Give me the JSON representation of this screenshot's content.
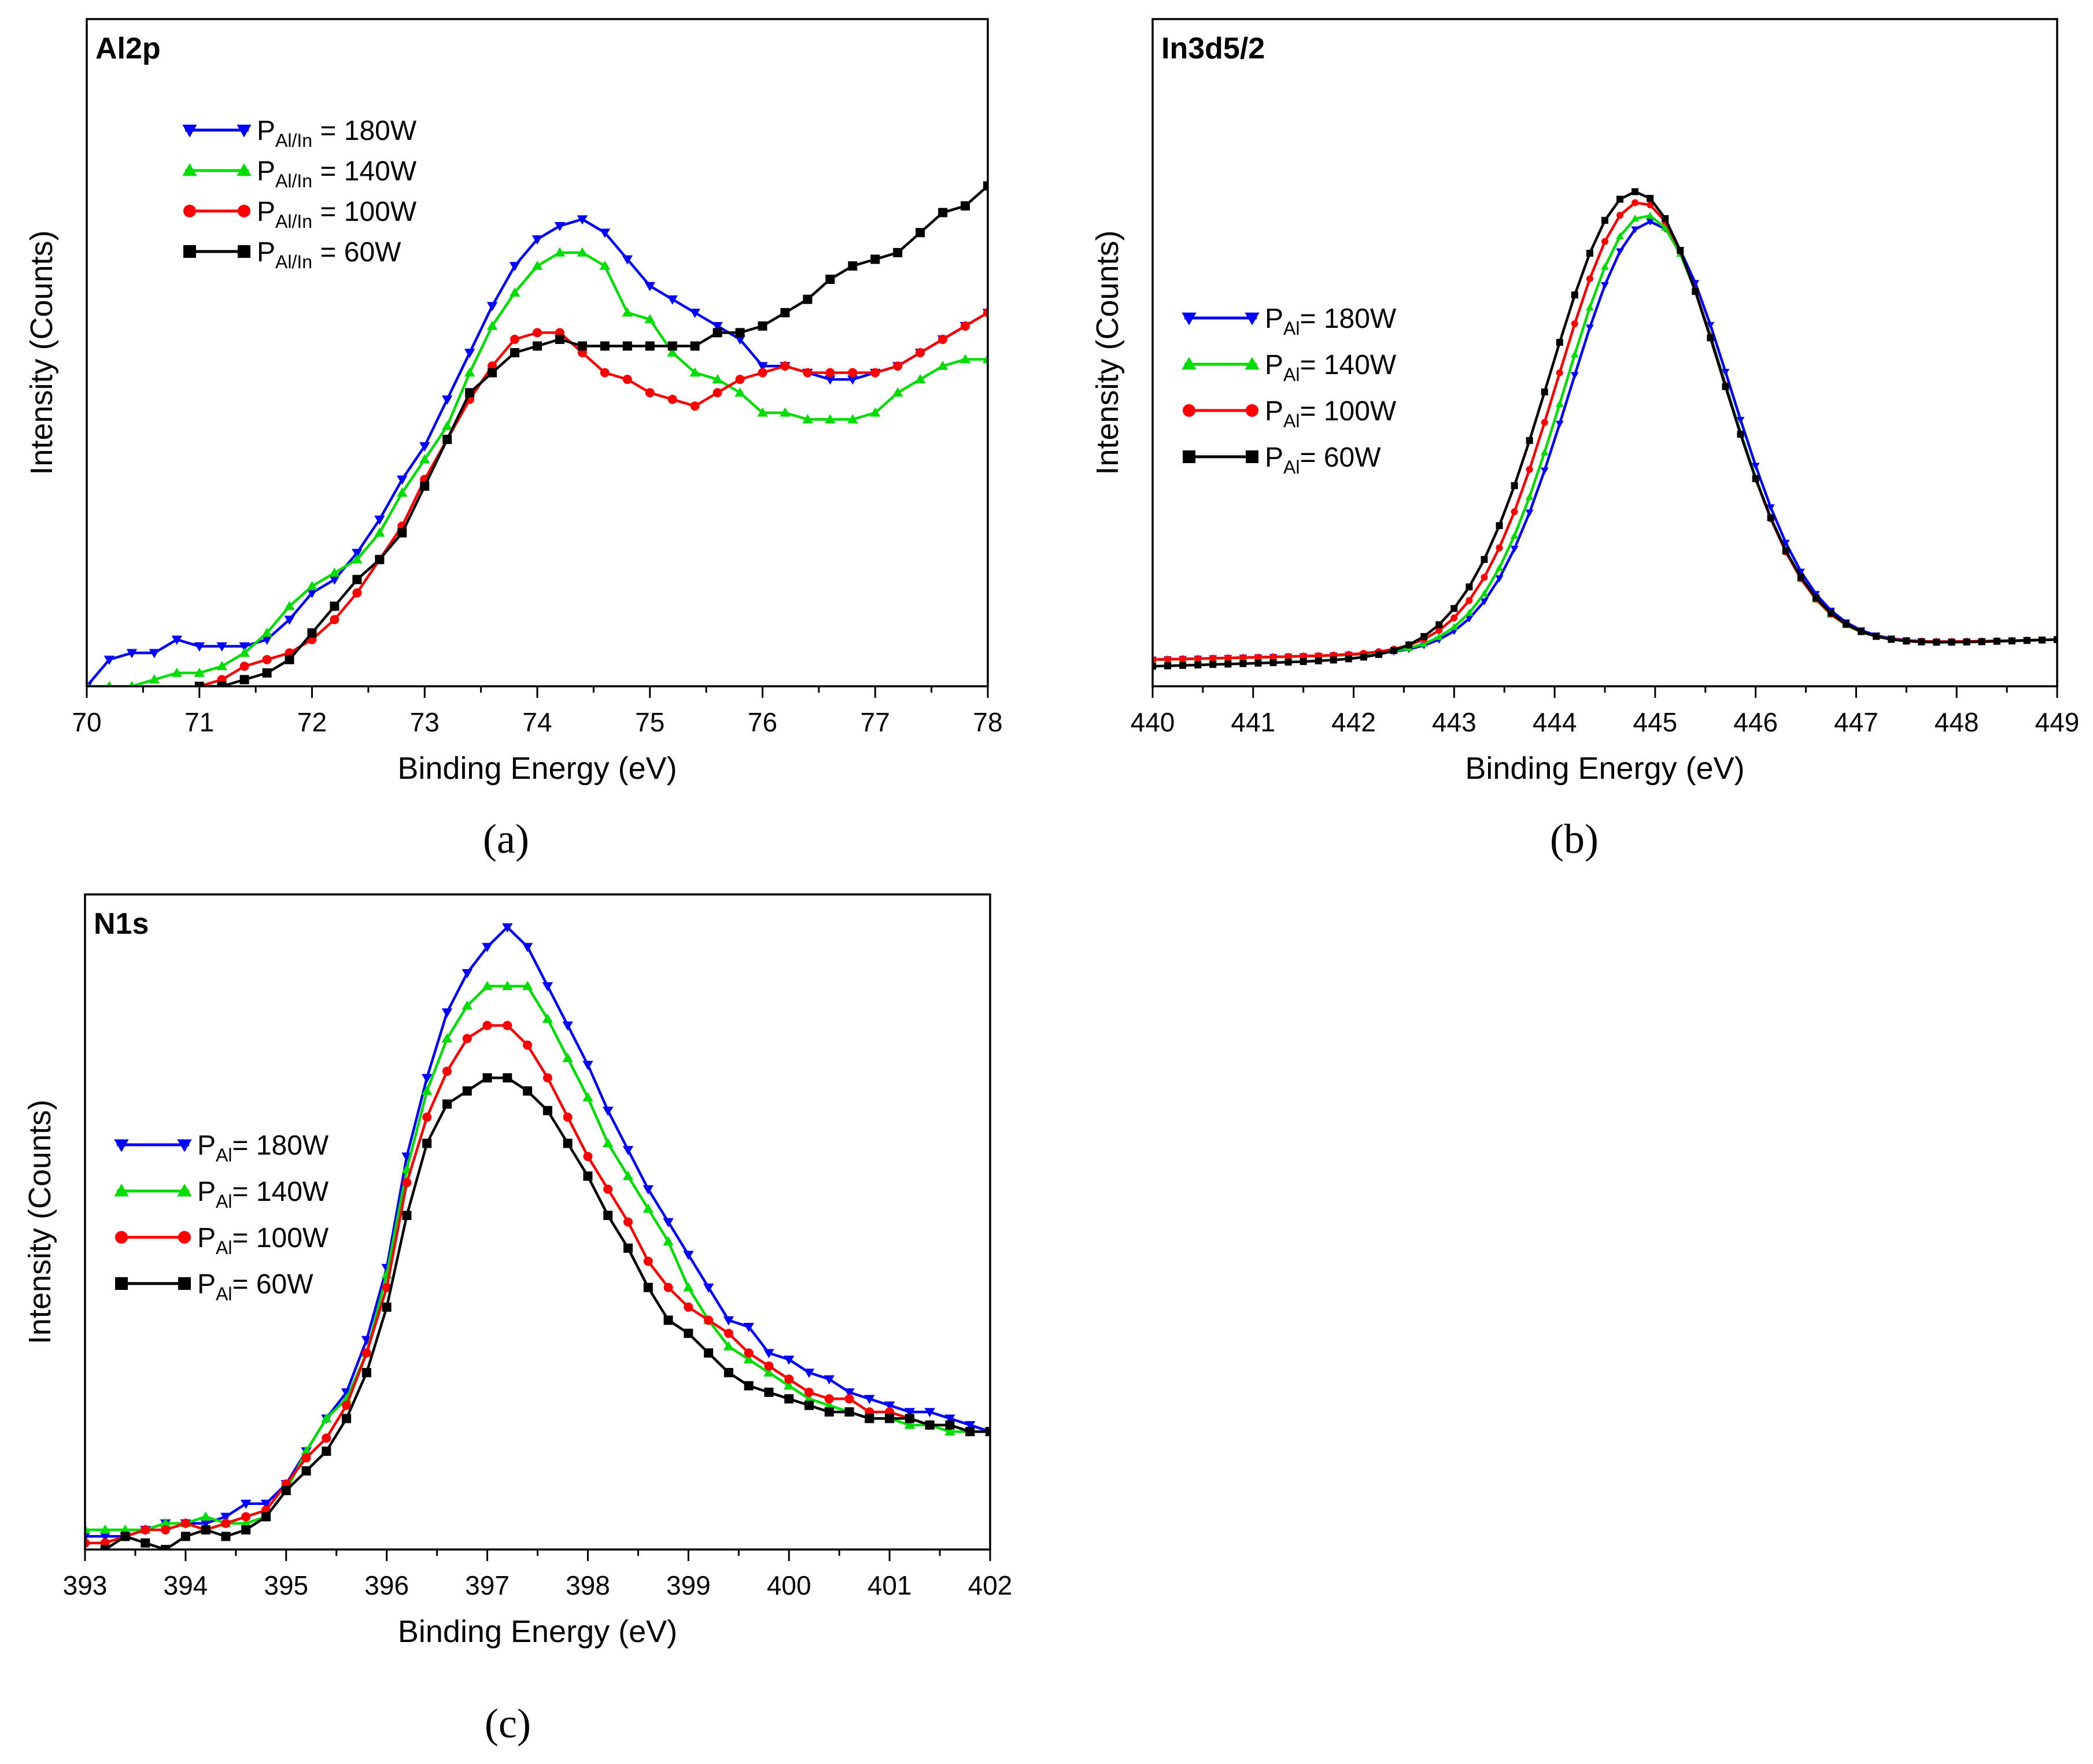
{
  "figure": {
    "panel_labels": [
      "(a)",
      "(b)",
      "(c)"
    ],
    "series_colors": {
      "180W": "#0000ff",
      "140W": "#00dd00",
      "100W": "#ff0000",
      "60W": "#000000"
    }
  },
  "chart_data": [
    {
      "id": "a",
      "type": "line",
      "title": "Al2p",
      "xlabel": "Binding Energy (eV)",
      "ylabel": "Intensity (Counts)",
      "xlim": [
        70,
        78
      ],
      "ylim": [
        0,
        100
      ],
      "xticks": [
        "70",
        "71",
        "72",
        "73",
        "74",
        "75",
        "76",
        "77",
        "78"
      ],
      "legend_position": "top-left",
      "legend_symbol": "P",
      "legend_subscript": "Al/In",
      "series": [
        {
          "name": "180W",
          "legend_text": " = 180W",
          "color": "#0000ff",
          "marker": "triangle-down",
          "x": [
            70.0,
            70.2,
            70.4,
            70.6,
            70.8,
            71.0,
            71.2,
            71.4,
            71.6,
            71.8,
            72.0,
            72.2,
            72.4,
            72.6,
            72.8,
            73.0,
            73.2,
            73.4,
            73.6,
            73.8,
            74.0,
            74.2,
            74.4,
            74.6,
            74.8,
            75.0,
            75.2,
            75.4,
            75.6,
            75.8,
            76.0,
            76.2,
            76.4,
            76.6,
            76.8,
            77.0,
            77.2,
            77.4,
            77.6,
            77.8,
            78.0
          ],
          "y": [
            0,
            4,
            5,
            5,
            7,
            6,
            6,
            6,
            7,
            10,
            14,
            16,
            20,
            25,
            31,
            36,
            43,
            50,
            57,
            63,
            67,
            69,
            70,
            68,
            64,
            60,
            58,
            56,
            54,
            52,
            48,
            48,
            47,
            46,
            46,
            47,
            48,
            50,
            52,
            54,
            56
          ]
        },
        {
          "name": "140W",
          "legend_text": " = 140W",
          "color": "#00dd00",
          "marker": "triangle-up",
          "x": [
            70.0,
            70.2,
            70.4,
            70.6,
            70.8,
            71.0,
            71.2,
            71.4,
            71.6,
            71.8,
            72.0,
            72.2,
            72.4,
            72.6,
            72.8,
            73.0,
            73.2,
            73.4,
            73.6,
            73.8,
            74.0,
            74.2,
            74.4,
            74.6,
            74.8,
            75.0,
            75.2,
            75.4,
            75.6,
            75.8,
            76.0,
            76.2,
            76.4,
            76.6,
            76.8,
            77.0,
            77.2,
            77.4,
            77.6,
            77.8,
            78.0
          ],
          "y": [
            0,
            0,
            0,
            1,
            2,
            2,
            3,
            5,
            8,
            12,
            15,
            17,
            19,
            23,
            29,
            34,
            39,
            47,
            54,
            59,
            63,
            65,
            65,
            63,
            56,
            55,
            50,
            47,
            46,
            44,
            41,
            41,
            40,
            40,
            40,
            41,
            44,
            46,
            48,
            49,
            49
          ]
        },
        {
          "name": "100W",
          "legend_text": " = 100W",
          "color": "#ff0000",
          "marker": "circle",
          "x": [
            71.0,
            71.2,
            71.4,
            71.6,
            71.8,
            72.0,
            72.2,
            72.4,
            72.6,
            72.8,
            73.0,
            73.2,
            73.4,
            73.6,
            73.8,
            74.0,
            74.2,
            74.4,
            74.6,
            74.8,
            75.0,
            75.2,
            75.4,
            75.6,
            75.8,
            76.0,
            76.2,
            76.4,
            76.6,
            76.8,
            77.0,
            77.2,
            77.4,
            77.6,
            77.8,
            78.0
          ],
          "y": [
            0,
            1,
            3,
            4,
            5,
            7,
            10,
            14,
            19,
            24,
            31,
            37,
            43,
            48,
            52,
            53,
            53,
            50,
            47,
            46,
            44,
            43,
            42,
            44,
            46,
            47,
            48,
            47,
            47,
            47,
            47,
            48,
            50,
            52,
            54,
            56
          ]
        },
        {
          "name": "60W",
          "legend_text": " = 60W",
          "color": "#000000",
          "marker": "square",
          "x": [
            71.0,
            71.2,
            71.4,
            71.6,
            71.8,
            72.0,
            72.2,
            72.4,
            72.6,
            72.8,
            73.0,
            73.2,
            73.4,
            73.6,
            73.8,
            74.0,
            74.2,
            74.4,
            74.6,
            74.8,
            75.0,
            75.2,
            75.4,
            75.6,
            75.8,
            76.0,
            76.2,
            76.4,
            76.6,
            76.8,
            77.0,
            77.2,
            77.4,
            77.6,
            77.8,
            78.0
          ],
          "y": [
            0,
            0,
            1,
            2,
            4,
            8,
            12,
            16,
            19,
            23,
            30,
            37,
            44,
            47,
            50,
            51,
            52,
            51,
            51,
            51,
            51,
            51,
            51,
            53,
            53,
            54,
            56,
            58,
            61,
            63,
            64,
            65,
            68,
            71,
            72,
            75
          ]
        }
      ]
    },
    {
      "id": "b",
      "type": "line",
      "title": "In3d5/2",
      "xlabel": "Binding Energy (eV)",
      "ylabel": "Intensity (Counts)",
      "xlim": [
        440,
        449
      ],
      "ylim": [
        0,
        100
      ],
      "xticks": [
        "440",
        "441",
        "442",
        "443",
        "444",
        "445",
        "446",
        "447",
        "448",
        "449"
      ],
      "legend_position": "left",
      "legend_symbol": "P",
      "legend_subscript": "Al",
      "series": [
        {
          "name": "180W",
          "legend_text": "= 180W",
          "color": "#0000ff",
          "marker": "triangle-down",
          "center": 444.95,
          "width": 0.8,
          "amplitude": 64,
          "baseline_left": 4,
          "baseline_right": 7,
          "offset": 0
        },
        {
          "name": "140W",
          "legend_text": "= 140W",
          "color": "#00dd00",
          "marker": "triangle-up",
          "center": 444.9,
          "width": 0.8,
          "amplitude": 65,
          "baseline_left": 4,
          "baseline_right": 7,
          "offset": 0
        },
        {
          "name": "100W",
          "legend_text": "= 100W",
          "color": "#ff0000",
          "marker": "circle",
          "center": 444.85,
          "width": 0.82,
          "amplitude": 67,
          "baseline_left": 4,
          "baseline_right": 7,
          "offset": 0
        },
        {
          "name": "60W",
          "legend_text": "= 60W",
          "color": "#000000",
          "marker": "square",
          "center": 444.8,
          "width": 0.85,
          "amplitude": 69,
          "baseline_left": 3,
          "baseline_right": 7,
          "offset": 0
        }
      ]
    },
    {
      "id": "c",
      "type": "line",
      "title": "N1s",
      "xlabel": "Binding Energy (eV)",
      "ylabel": "Intensity (Counts)",
      "xlim": [
        393,
        402
      ],
      "ylim": [
        0,
        100
      ],
      "xticks": [
        "393",
        "394",
        "395",
        "396",
        "397",
        "398",
        "399",
        "400",
        "401",
        "402"
      ],
      "legend_position": "left",
      "legend_symbol": "P",
      "legend_subscript": "Al",
      "series": [
        {
          "name": "180W",
          "legend_text": "= 180W",
          "color": "#0000ff",
          "marker": "triangle-down",
          "x": [
            393.0,
            393.2,
            393.4,
            393.6,
            393.8,
            394.0,
            394.2,
            394.4,
            394.6,
            394.8,
            395.0,
            395.2,
            395.4,
            395.6,
            395.8,
            396.0,
            396.2,
            396.4,
            396.6,
            396.8,
            397.0,
            397.2,
            397.4,
            397.6,
            397.8,
            398.0,
            398.2,
            398.4,
            398.6,
            398.8,
            399.0,
            399.2,
            399.4,
            399.6,
            399.8,
            400.0,
            400.2,
            400.4,
            400.6,
            400.8,
            401.0,
            401.2,
            401.4,
            401.6,
            401.8,
            402.0
          ],
          "y": [
            2,
            2,
            2,
            3,
            4,
            4,
            4,
            5,
            7,
            7,
            10,
            15,
            20,
            24,
            32,
            43,
            60,
            72,
            82,
            88,
            92,
            95,
            92,
            86,
            80,
            74,
            67,
            61,
            55,
            50,
            45,
            40,
            35,
            34,
            30,
            29,
            27,
            26,
            24,
            23,
            22,
            21,
            21,
            20,
            19,
            18
          ]
        },
        {
          "name": "140W",
          "legend_text": "= 140W",
          "color": "#00dd00",
          "marker": "triangle-up",
          "x": [
            393.0,
            393.2,
            393.4,
            393.6,
            393.8,
            394.0,
            394.2,
            394.4,
            394.6,
            394.8,
            395.0,
            395.2,
            395.4,
            395.6,
            395.8,
            396.0,
            396.2,
            396.4,
            396.6,
            396.8,
            397.0,
            397.2,
            397.4,
            397.6,
            397.8,
            398.0,
            398.2,
            398.4,
            398.6,
            398.8,
            399.0,
            399.2,
            399.4,
            399.6,
            399.8,
            400.0,
            400.2,
            400.4,
            400.6,
            400.8,
            401.0,
            401.2,
            401.4,
            401.6,
            401.8,
            402.0
          ],
          "y": [
            3,
            3,
            3,
            3,
            4,
            4,
            5,
            4,
            4,
            5,
            9,
            15,
            20,
            23,
            30,
            42,
            58,
            70,
            78,
            83,
            86,
            86,
            86,
            81,
            75,
            69,
            62,
            57,
            52,
            47,
            40,
            35,
            31,
            29,
            27,
            25,
            23,
            22,
            21,
            20,
            20,
            19,
            19,
            18,
            18,
            18
          ]
        },
        {
          "name": "100W",
          "legend_text": "= 100W",
          "color": "#ff0000",
          "marker": "circle",
          "x": [
            393.0,
            393.2,
            393.4,
            393.6,
            393.8,
            394.0,
            394.2,
            394.4,
            394.6,
            394.8,
            395.0,
            395.2,
            395.4,
            395.6,
            395.8,
            396.0,
            396.2,
            396.4,
            396.6,
            396.8,
            397.0,
            397.2,
            397.4,
            397.6,
            397.8,
            398.0,
            398.2,
            398.4,
            398.6,
            398.8,
            399.0,
            399.2,
            399.4,
            399.6,
            399.8,
            400.0,
            400.2,
            400.4,
            400.6,
            400.8,
            401.0,
            401.2,
            401.4,
            401.6,
            401.8,
            402.0
          ],
          "y": [
            1,
            1,
            2,
            3,
            3,
            4,
            3,
            4,
            5,
            6,
            10,
            14,
            17,
            22,
            30,
            40,
            56,
            66,
            73,
            78,
            80,
            80,
            77,
            72,
            66,
            60,
            55,
            50,
            44,
            40,
            37,
            35,
            33,
            30,
            28,
            26,
            24,
            23,
            23,
            21,
            21,
            20,
            19,
            19,
            18,
            18
          ]
        },
        {
          "name": "60W",
          "legend_text": "= 60W",
          "color": "#000000",
          "marker": "square",
          "x": [
            393.0,
            393.2,
            393.4,
            393.6,
            393.8,
            394.0,
            394.2,
            394.4,
            394.6,
            394.8,
            395.0,
            395.2,
            395.4,
            395.6,
            395.8,
            396.0,
            396.2,
            396.4,
            396.6,
            396.8,
            397.0,
            397.2,
            397.4,
            397.6,
            397.8,
            398.0,
            398.2,
            398.4,
            398.6,
            398.8,
            399.0,
            399.2,
            399.4,
            399.6,
            399.8,
            400.0,
            400.2,
            400.4,
            400.6,
            400.8,
            401.0,
            401.2,
            401.4,
            401.6,
            401.8,
            402.0
          ],
          "y": [
            -4,
            0,
            2,
            1,
            0,
            2,
            3,
            2,
            3,
            5,
            9,
            12,
            15,
            20,
            27,
            37,
            51,
            62,
            68,
            70,
            72,
            72,
            70,
            67,
            62,
            57,
            51,
            46,
            40,
            35,
            33,
            30,
            27,
            25,
            24,
            23,
            22,
            21,
            21,
            20,
            20,
            20,
            19,
            19,
            18,
            18
          ]
        }
      ]
    }
  ]
}
